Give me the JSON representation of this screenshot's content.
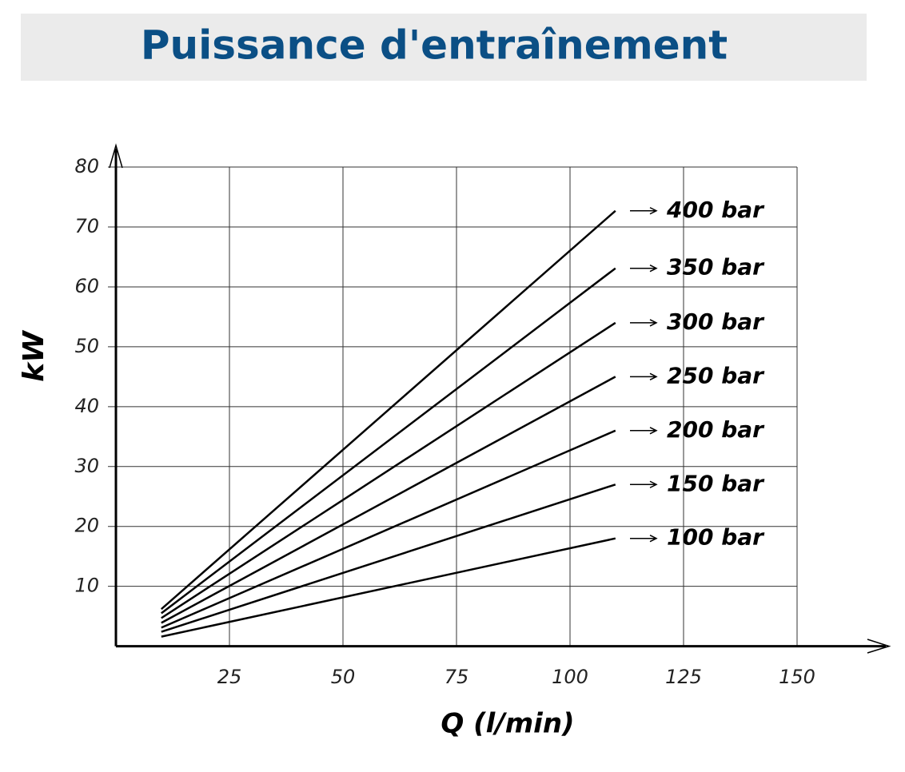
{
  "chart_data": {
    "type": "line",
    "title": "Puissance d'entraînement",
    "x_label": "Q (l/min)",
    "y_label": "kW",
    "x": [
      10,
      110
    ],
    "series": [
      {
        "name": "400 bar",
        "color": "#000000",
        "values": [
          6.2,
          72.7
        ]
      },
      {
        "name": "350 bar",
        "color": "#000000",
        "values": [
          5.5,
          63.1
        ]
      },
      {
        "name": "300 bar",
        "color": "#000000",
        "values": [
          4.7,
          54.0
        ]
      },
      {
        "name": "250 bar",
        "color": "#000000",
        "values": [
          3.9,
          45.0
        ]
      },
      {
        "name": "200 bar",
        "color": "#000000",
        "values": [
          3.1,
          36.0
        ]
      },
      {
        "name": "150 bar",
        "color": "#000000",
        "values": [
          2.4,
          27.0
        ]
      },
      {
        "name": "100 bar",
        "color": "#000000",
        "values": [
          1.6,
          18.0
        ]
      }
    ],
    "xlim": [
      0,
      150
    ],
    "ylim": [
      0,
      80
    ],
    "xticks": [
      25,
      50,
      75,
      100,
      125,
      150
    ],
    "yticks": [
      10,
      20,
      30,
      40,
      50,
      60,
      70,
      80
    ],
    "grid": true
  }
}
